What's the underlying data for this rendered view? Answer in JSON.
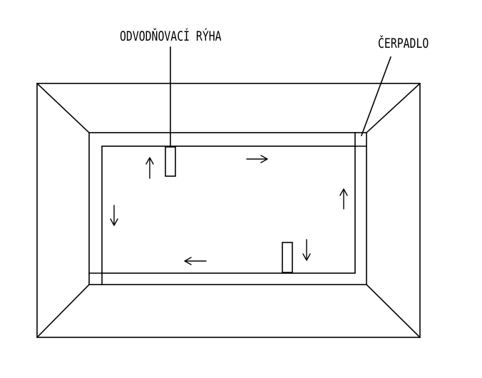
{
  "labels": {
    "drainage_trench": "ODVODŇOVACÍ RÝHA",
    "pump": "ČERPADLO"
  },
  "colors": {
    "line": "#000000",
    "background": "#ffffff"
  },
  "flow_arrows": [
    {
      "name": "flow-arrow-left-up",
      "direction": "up"
    },
    {
      "name": "flow-arrow-top-right",
      "direction": "right"
    },
    {
      "name": "flow-arrow-right-up",
      "direction": "up"
    },
    {
      "name": "flow-arrow-left-down",
      "direction": "down"
    },
    {
      "name": "flow-arrow-bottom-left",
      "direction": "left"
    },
    {
      "name": "flow-arrow-bottom-down",
      "direction": "down"
    }
  ]
}
